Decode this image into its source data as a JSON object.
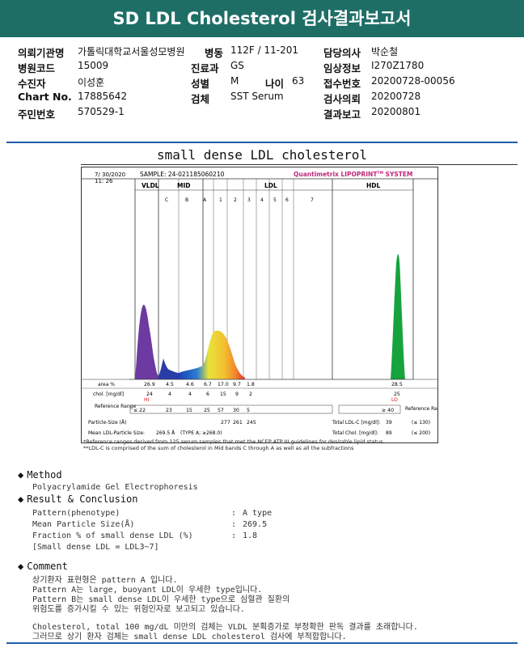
{
  "title": "SD LDL Cholesterol 검사결과보고서",
  "info": {
    "hospital_label": "의뢰기관명",
    "hospital": "가톨릭대학교서울성모병원",
    "ward_label": "병동",
    "ward": "112F / 11-201",
    "doctor_label": "담당의사",
    "doctor": "박순철",
    "code_label": "병원코드",
    "code": "15009",
    "dept_label": "진료과",
    "dept": "GS",
    "clinical_label": "임상정보",
    "clinical": "I270Z1780",
    "patient_label": "수진자",
    "patient": "이성훈",
    "sex_label": "성별",
    "sex": "M",
    "age_label": "나이",
    "age": "63",
    "receipt_label": "접수번호",
    "receipt": "20200728-00056",
    "chart_label": "Chart No.",
    "chart": "17885642",
    "specimen_label": "검체",
    "specimen": "SST Serum",
    "request_label": "검사의뢰",
    "request": "20200728",
    "rrn_label": "주민번호",
    "rrn": "570529-1",
    "report_label": "결과보고",
    "report": "20200801"
  },
  "chart_title": "small dense LDL cholesterol",
  "chart_data": {
    "type": "area",
    "date": "7/ 30/2020",
    "time": "11: 26",
    "sample": "SAMPLE:  24-021185060210",
    "vendor": "Quantimetrix LIPOPRINT",
    "vendor_tm": "TM",
    "vendor_suffix": " SYSTEM",
    "groups": [
      "VLDL",
      "MID",
      "LDL",
      "HDL"
    ],
    "bands": [
      "C",
      "B",
      "A",
      "1",
      "2",
      "3",
      "4",
      "5",
      "6",
      "7"
    ],
    "area_label": "area %",
    "area": [
      "26.9",
      "4.5",
      "4.6",
      "6.7",
      "17.0",
      "9.7",
      "1.8",
      "",
      "",
      "",
      "",
      "28.5"
    ],
    "chol_label": "chol. [mg/dl]",
    "chol": [
      "24",
      "4",
      "4",
      "6",
      "15",
      "9",
      "2",
      "",
      "",
      "",
      "",
      "25"
    ],
    "flags": {
      "vldl": "HI",
      "hdl": "LO"
    },
    "ref_label": "Reference Range",
    "ref": [
      "≤ 22",
      "23",
      "15",
      "25",
      "57",
      "30",
      "5"
    ],
    "ref_hdl": "≥ 40",
    "particle_label": "Particle-Size (Å)",
    "particle": [
      "277",
      "261",
      "245"
    ],
    "mean_label": "Mean LDL-Particle Size:",
    "mean_value": "269.5 Å",
    "mean_type": "(TYPE A; ≥268.0)",
    "total_ldl_label": "Total LDL-C [mg/dl]:",
    "total_ldl": "39",
    "total_ldl_ref": "(≤ 130)",
    "total_chol_label": "Total Chol. [mg/dl]:",
    "total_chol": "89",
    "total_chol_ref": "(≤ 200)",
    "right_ref_label": "Reference Range"
  },
  "notes": [
    "*Reference ranges derived from 125 serum samples that met the NCEP ATP III guidelines for desirable lipid status",
    "**LDL-C is comprised of the sum of cholesterol in Mid bands C through A as well as all the subfractions"
  ],
  "method": {
    "heading": "Method",
    "text": "Polyacrylamide Gel Electrophoresis"
  },
  "result": {
    "heading": "Result & Conclusion",
    "rows": [
      {
        "label": "Pattern(phenotype)",
        "colon": ":",
        "value": "A type"
      },
      {
        "label": "Mean Particle Size(Å)",
        "colon": ":",
        "value": "269.5"
      },
      {
        "label": "Fraction % of small dense LDL (%)",
        "colon": ":",
        "value": "1.8"
      }
    ],
    "bracket": "[Small dense LDL = LDL3~7]"
  },
  "comment": {
    "heading": "Comment",
    "lines": [
      "상기환자 표현형은 pattern A 입니다.",
      "Pattern A는 large, buoyant LDL이 우세한 type입니다.",
      "Pattern B는 small dense LDL이 우세한 type으로 심혈관 질환의",
      "위험도를 증가시킬 수 있는 위험인자로 보고되고 있습니다.",
      "",
      "Cholesterol, total 100 mg/dL 미만의 검체는 VLDL 분획증가로 부정확한 판독 결과를 초래합니다.",
      "그러므로 상기 환자 검체는 small dense LDL cholesterol 검사에 부적합합니다."
    ]
  }
}
